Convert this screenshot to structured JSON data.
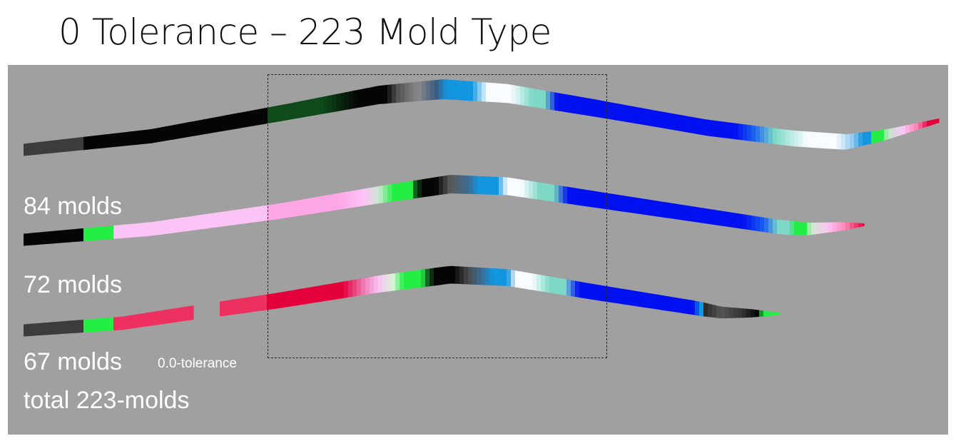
{
  "title": "0 Tolerance – 223 Mold Type",
  "labels": {
    "strip2": "84 molds",
    "strip3": "72 molds",
    "strip4": "67 molds",
    "tolerance": "0.0-tolerance",
    "total": "total 223-molds"
  },
  "colors": {
    "background": "#a0a0a0",
    "dark_gray": "#3c3c3c",
    "black": "#050505",
    "dark_green": "#0e4a1a",
    "green": "#22ee44",
    "light_pink": "#fcc4f6",
    "pink": "#ffa6e6",
    "crimson": "#e4003a",
    "rose": "#ee3060",
    "cyan_blue": "#1296e0",
    "white": "#f8fbff",
    "teal": "#7dd9c6",
    "blue": "#0010f0"
  }
}
